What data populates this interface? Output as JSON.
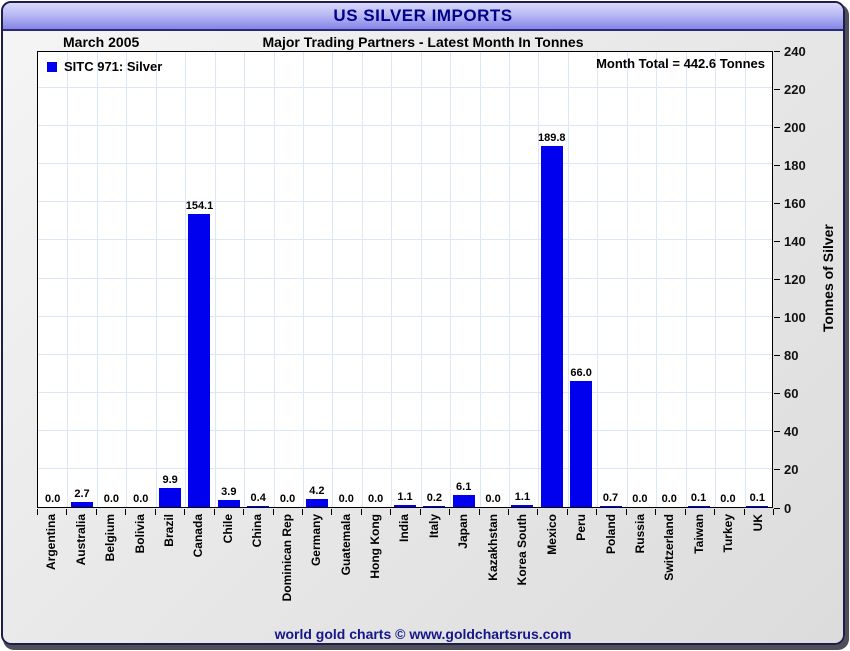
{
  "window": {
    "title": "US SILVER IMPORTS",
    "footer": "world gold charts © www.goldchartsrus.com"
  },
  "header": {
    "period": "March 2005",
    "subtitle": "Major Trading Partners - Latest Month In Tonnes",
    "month_total": "Month Total = 442.6 Tonnes"
  },
  "legend": {
    "label": "SITC 971: Silver"
  },
  "colors": {
    "bar": "#0000ee",
    "grid": "#dce7f6",
    "banner_top": "#d9d9fb",
    "banner_bottom": "#8585e8",
    "title_text": "#00008b",
    "footer_text": "#16168c"
  },
  "chart_data": {
    "type": "bar",
    "title": "US SILVER IMPORTS",
    "subtitle": "Major Trading Partners - Latest Month In Tonnes",
    "period": "March 2005",
    "series_name": "SITC 971: Silver",
    "month_total_tonnes": 442.6,
    "categories": [
      "Argentina",
      "Australia",
      "Belgium",
      "Bolivia",
      "Brazil",
      "Canada",
      "Chile",
      "China",
      "Dominican Rep",
      "Germany",
      "Guatemala",
      "Hong Kong",
      "India",
      "Italy",
      "Japan",
      "Kazakhstan",
      "Korea South",
      "Mexico",
      "Peru",
      "Poland",
      "Russia",
      "Switzerland",
      "Taiwan",
      "Turkey",
      "UK"
    ],
    "values": [
      0.0,
      2.7,
      0.0,
      0.0,
      9.9,
      154.1,
      3.9,
      0.4,
      0.0,
      4.2,
      0.0,
      0.0,
      1.1,
      0.2,
      6.1,
      0.0,
      1.1,
      189.8,
      66.0,
      0.7,
      0.0,
      0.0,
      0.1,
      0.0,
      0.1
    ],
    "xlabel": "",
    "ylabel": "Tonnes of Silver",
    "ylim": [
      0,
      240
    ],
    "y_ticks": [
      0,
      20,
      40,
      60,
      80,
      100,
      120,
      140,
      160,
      180,
      200,
      220,
      240
    ],
    "grid": true,
    "legend_position": "top-left",
    "value_label_decimals": 1
  }
}
